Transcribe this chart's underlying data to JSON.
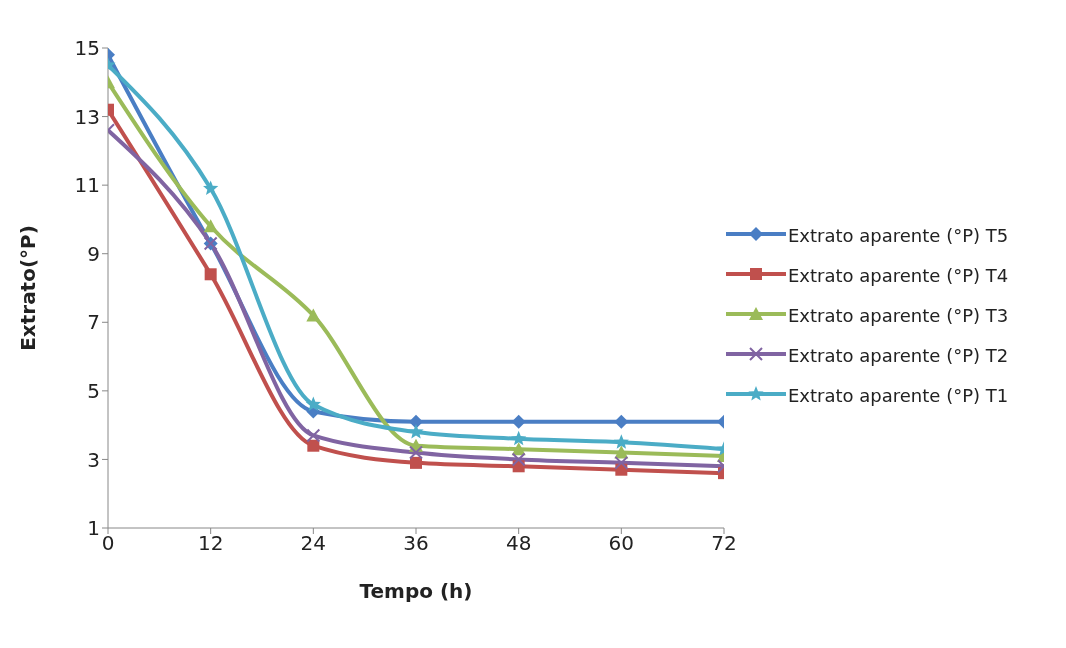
{
  "chart_data": {
    "type": "line",
    "xlabel": "Tempo (h)",
    "ylabel": "Extrato(°P)",
    "x": [
      0,
      12,
      24,
      36,
      48,
      60,
      72
    ],
    "xlim": [
      0,
      72
    ],
    "xticks": [
      0,
      12,
      24,
      36,
      48,
      60,
      72
    ],
    "ylim": [
      1,
      15
    ],
    "yticks": [
      1,
      3,
      5,
      7,
      9,
      11,
      13,
      15
    ],
    "grid": false,
    "legend": "right",
    "series": [
      {
        "name": "Extrato aparente (°P) T5",
        "color": "#4a7ec4",
        "marker": "diamond",
        "values": [
          14.8,
          9.3,
          4.4,
          4.1,
          4.1,
          4.1,
          4.1
        ]
      },
      {
        "name": "Extrato aparente (°P) T4",
        "color": "#c0504d",
        "marker": "square",
        "values": [
          13.2,
          8.4,
          3.4,
          2.9,
          2.8,
          2.7,
          2.6
        ]
      },
      {
        "name": "Extrato aparente (°P) T3",
        "color": "#9bbb59",
        "marker": "triangle",
        "values": [
          14.0,
          9.8,
          7.2,
          3.4,
          3.3,
          3.2,
          3.1
        ]
      },
      {
        "name": "Extrato aparente (°P) T2",
        "color": "#8064a2",
        "marker": "cross",
        "values": [
          12.6,
          9.3,
          3.7,
          3.2,
          3.0,
          2.9,
          2.8
        ]
      },
      {
        "name": "Extrato aparente (°P) T1",
        "color": "#4bacc6",
        "marker": "star",
        "values": [
          14.5,
          10.9,
          4.6,
          3.8,
          3.6,
          3.5,
          3.3
        ]
      }
    ]
  }
}
